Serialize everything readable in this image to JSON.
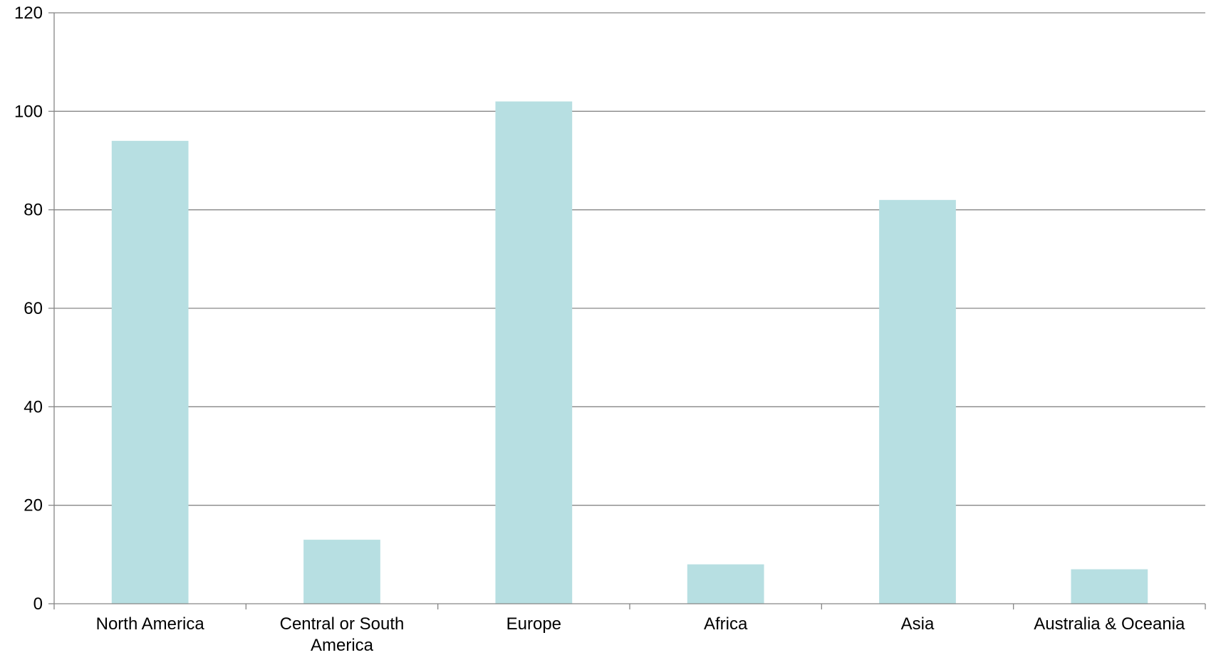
{
  "chart_data": {
    "type": "bar",
    "title": "",
    "xlabel": "",
    "ylabel": "",
    "categories": [
      "North America",
      "Central or South America",
      "Europe",
      "Africa",
      "Asia",
      "Australia & Oceania"
    ],
    "category_label_lines": [
      [
        "North America"
      ],
      [
        "Central or South",
        "America"
      ],
      [
        "Europe"
      ],
      [
        "Africa"
      ],
      [
        "Asia"
      ],
      [
        "Australia & Oceania"
      ]
    ],
    "values": [
      94,
      13,
      102,
      8,
      82,
      7
    ],
    "ylim": [
      0,
      120
    ],
    "yticks": [
      0,
      20,
      40,
      60,
      80,
      100,
      120
    ],
    "grid": true,
    "legend": "none",
    "bar_color": "#b7dfe2",
    "grid_color": "#868686",
    "axis_color": "#868686"
  }
}
